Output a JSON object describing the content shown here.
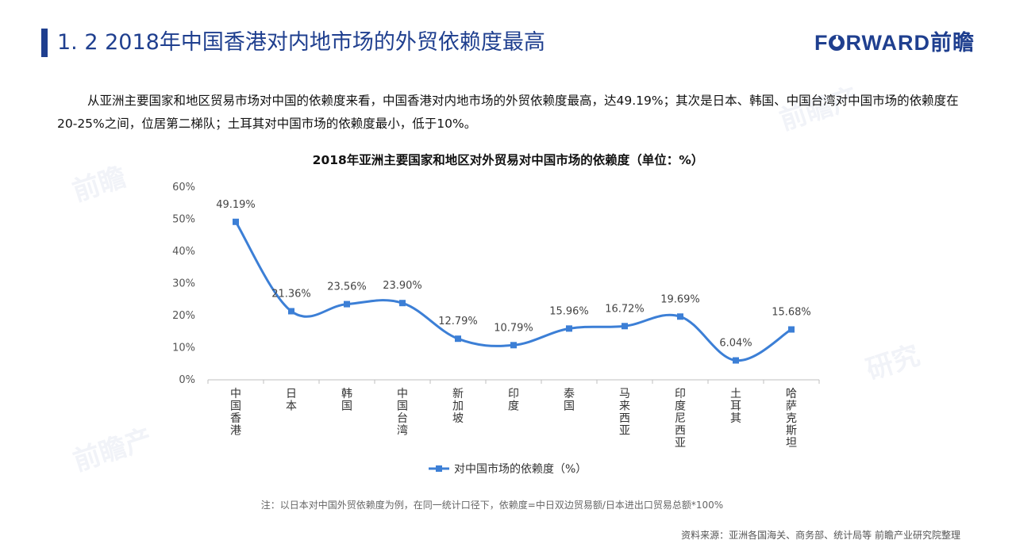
{
  "header": {
    "title": "1. 2  2018年中国香港对内地市场的外贸依赖度最高",
    "logo_part1": "F",
    "logo_part2": "RWARD前瞻"
  },
  "intro_text": "从亚洲主要国家和地区贸易市场对中国的依赖度来看，中国香港对内地市场的外贸依赖度最高，达49.19%；其次是日本、韩国、中国台湾对中国市场的依赖度在20-25%之间，位居第二梯队；土耳其对中国市场的依赖度最小，低于10%。",
  "chart_data": {
    "type": "line",
    "title": "2018年亚洲主要国家和地区对外贸易对中国市场的依赖度（单位：%）",
    "categories": [
      "中国香港",
      "日本",
      "韩国",
      "中国台湾",
      "新加坡",
      "印度",
      "泰国",
      "马来西亚",
      "印度尼西亚",
      "土耳其",
      "哈萨克斯坦"
    ],
    "series": [
      {
        "name": "对中国市场的依赖度（%）",
        "values": [
          49.19,
          21.36,
          23.56,
          23.9,
          12.79,
          10.79,
          15.96,
          16.72,
          19.69,
          6.04,
          15.68
        ],
        "labels": [
          "49.19%",
          "21.36%",
          "23.56%",
          "23.90%",
          "12.79%",
          "10.79%",
          "15.96%",
          "16.72%",
          "19.69%",
          "6.04%",
          "15.68%"
        ],
        "color": "#3c7fd6"
      }
    ],
    "ylim": [
      0,
      60
    ],
    "yticks": [
      "0%",
      "10%",
      "20%",
      "30%",
      "40%",
      "50%",
      "60%"
    ],
    "smooth": true,
    "legend": "bottom-center",
    "grid": false
  },
  "footer": {
    "note": "注：以日本对中国外贸依赖度为例，在同一统计口径下，依赖度=中日双边贸易额/日本进出口贸易总额*100%",
    "source": "资料来源：亚洲各国海关、商务部、统计局等  前瞻产业研究院整理"
  },
  "colors": {
    "brand": "#1f3f8f",
    "series": "#3c7fd6"
  }
}
